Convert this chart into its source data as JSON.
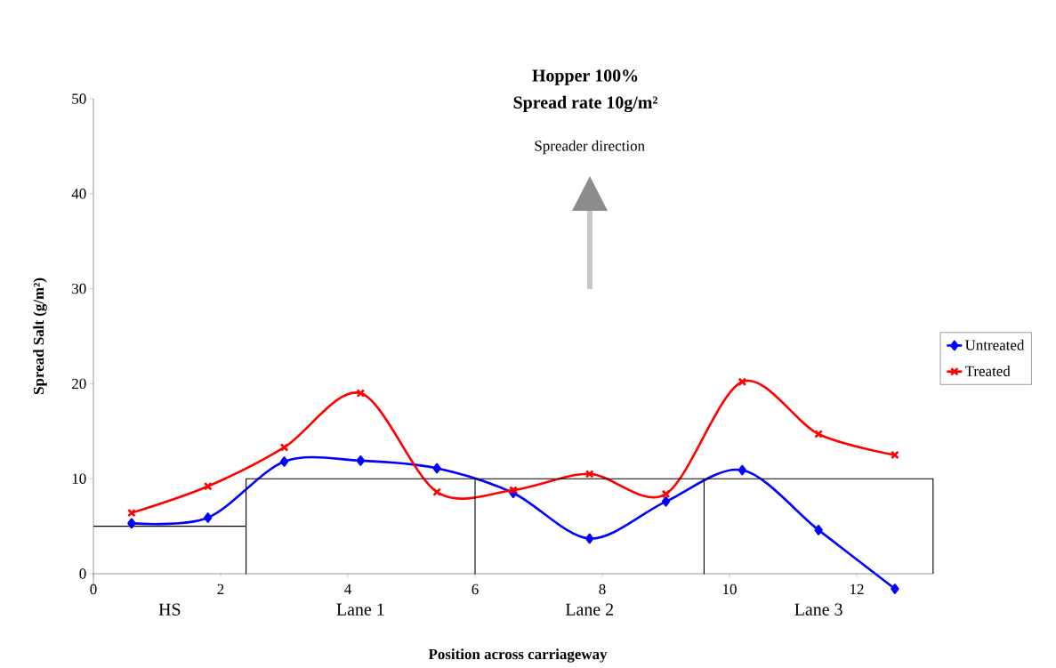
{
  "chart_data": {
    "type": "line",
    "title": "Hopper 100%",
    "subtitle": "Spread rate 10g/m²",
    "xlabel": "Position across carriageway",
    "ylabel": "Spread Salt (g/m²)",
    "xlim": [
      0,
      13.2
    ],
    "ylim": [
      -1.6,
      50
    ],
    "xticks": [
      0,
      2,
      4,
      6,
      8,
      10,
      12
    ],
    "yticks": [
      0,
      10,
      20,
      30,
      40,
      50
    ],
    "grid": false,
    "legend": "right",
    "series": [
      {
        "name": "Untreated",
        "color": "#0000ff",
        "marker": "diamond",
        "x": [
          0.6,
          1.8,
          3.0,
          4.2,
          5.4,
          6.6,
          7.8,
          9.0,
          10.2,
          11.4,
          12.6
        ],
        "values": [
          5.3,
          5.9,
          11.8,
          11.9,
          11.1,
          8.5,
          3.7,
          7.6,
          10.9,
          4.6,
          -1.6
        ]
      },
      {
        "name": "Treated",
        "color": "#ff0000",
        "marker": "cross",
        "x": [
          0.6,
          1.8,
          3.0,
          4.2,
          5.4,
          6.6,
          7.8,
          9.0,
          10.2,
          11.4,
          12.6
        ],
        "values": [
          6.4,
          9.2,
          13.3,
          19.0,
          8.6,
          8.8,
          10.5,
          8.4,
          20.2,
          14.7,
          12.5
        ]
      },
      {
        "color": "#000000",
        "marker": "none",
        "x": [
          0,
          2.4,
          2.4,
          2.4,
          6,
          6,
          6,
          9.6,
          9.6,
          9.6,
          13.2,
          13.2
        ],
        "values": [
          5,
          5,
          0,
          10,
          10,
          0,
          10,
          10,
          0,
          10,
          10,
          0
        ]
      }
    ],
    "annotations": [
      "Spreader direction",
      "HS",
      "Lane 1",
      "Lane 2",
      "Lane 3"
    ]
  }
}
